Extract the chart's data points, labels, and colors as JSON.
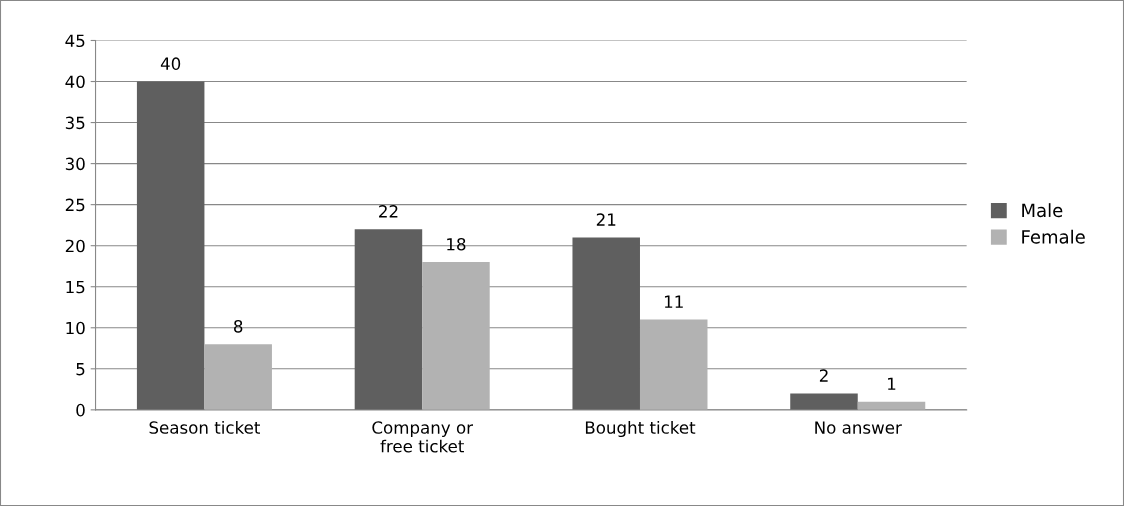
{
  "chart_data": {
    "type": "bar",
    "categories": [
      "Season ticket",
      "Company or\nfree ticket",
      "Bought ticket",
      "No answer"
    ],
    "series": [
      {
        "name": "Male",
        "color": "#5f5f5f",
        "values": [
          40,
          22,
          21,
          2
        ]
      },
      {
        "name": "Female",
        "color": "#b2b2b2",
        "values": [
          8,
          18,
          11,
          1
        ]
      }
    ],
    "ylim": [
      0,
      45
    ],
    "yticks": [
      0,
      5,
      10,
      15,
      20,
      25,
      30,
      35,
      40,
      45
    ],
    "grid": "y",
    "legend": "right",
    "data_labels": true
  }
}
